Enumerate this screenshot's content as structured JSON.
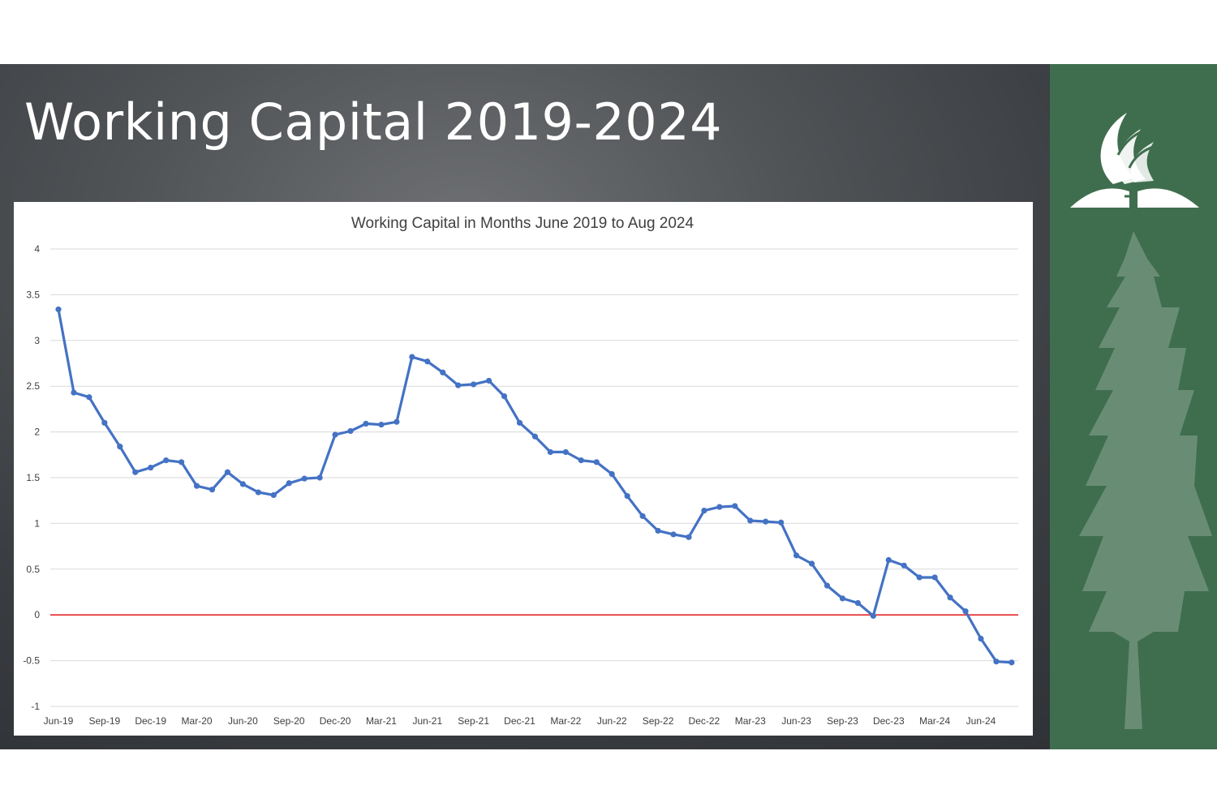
{
  "slide": {
    "title": "Working Capital 2019-2024"
  },
  "colors": {
    "series": "#4472C4",
    "zero_line": "#E00000",
    "gridline": "#D9D9D9",
    "side_panel": "#3F6E4E"
  },
  "icons": {
    "logo": "sda-flame-bible-logo-icon",
    "tree": "evergreen-tree-icon"
  },
  "chart_data": {
    "type": "line",
    "title": "Working Capital in Months June 2019 to Aug 2024",
    "xlabel": "",
    "ylabel": "",
    "ylim": [
      -1,
      4
    ],
    "y_ticks": [
      "4",
      "3.5",
      "3",
      "2.5",
      "2",
      "1.5",
      "1",
      "0.5",
      "0",
      "-0.5",
      "-1"
    ],
    "x_tick_labels": [
      "Jun-19",
      "Sep-19",
      "Dec-19",
      "Mar-20",
      "Jun-20",
      "Sep-20",
      "Dec-20",
      "Mar-21",
      "Jun-21",
      "Sep-21",
      "Dec-21",
      "Mar-22",
      "Jun-22",
      "Sep-22",
      "Dec-22",
      "Mar-23",
      "Jun-23",
      "Sep-23",
      "Dec-23",
      "Mar-24",
      "Jun-24"
    ],
    "grid": true,
    "legend": "none",
    "reference_line": {
      "y": 0
    },
    "x": [
      "Jun-19",
      "Jul-19",
      "Aug-19",
      "Sep-19",
      "Oct-19",
      "Nov-19",
      "Dec-19",
      "Jan-20",
      "Feb-20",
      "Mar-20",
      "Apr-20",
      "May-20",
      "Jun-20",
      "Jul-20",
      "Aug-20",
      "Sep-20",
      "Oct-20",
      "Nov-20",
      "Dec-20",
      "Jan-21",
      "Feb-21",
      "Mar-21",
      "Apr-21",
      "May-21",
      "Jun-21",
      "Jul-21",
      "Aug-21",
      "Sep-21",
      "Oct-21",
      "Nov-21",
      "Dec-21",
      "Jan-22",
      "Feb-22",
      "Mar-22",
      "Apr-22",
      "May-22",
      "Jun-22",
      "Jul-22",
      "Aug-22",
      "Sep-22",
      "Oct-22",
      "Nov-22",
      "Dec-22",
      "Jan-23",
      "Feb-23",
      "Mar-23",
      "Apr-23",
      "May-23",
      "Jun-23",
      "Jul-23",
      "Aug-23",
      "Sep-23",
      "Oct-23",
      "Nov-23",
      "Dec-23",
      "Jan-24",
      "Feb-24",
      "Mar-24",
      "Apr-24",
      "May-24",
      "Jun-24",
      "Jul-24",
      "Aug-24"
    ],
    "series": [
      {
        "values": [
          3.34,
          2.43,
          2.38,
          2.1,
          1.84,
          1.56,
          1.61,
          1.69,
          1.67,
          1.41,
          1.37,
          1.56,
          1.43,
          1.34,
          1.31,
          1.44,
          1.49,
          1.5,
          1.97,
          2.01,
          2.09,
          2.08,
          2.11,
          2.82,
          2.77,
          2.65,
          2.51,
          2.52,
          2.56,
          2.39,
          2.1,
          1.95,
          1.78,
          1.78,
          1.69,
          1.67,
          1.54,
          1.3,
          1.08,
          0.92,
          0.88,
          0.85,
          1.14,
          1.18,
          1.19,
          1.03,
          1.02,
          1.01,
          0.65,
          0.56,
          0.32,
          0.18,
          0.13,
          -0.01,
          0.6,
          0.54,
          0.41,
          0.41,
          0.19,
          0.04,
          -0.26,
          -0.51,
          -0.52
        ]
      }
    ]
  }
}
